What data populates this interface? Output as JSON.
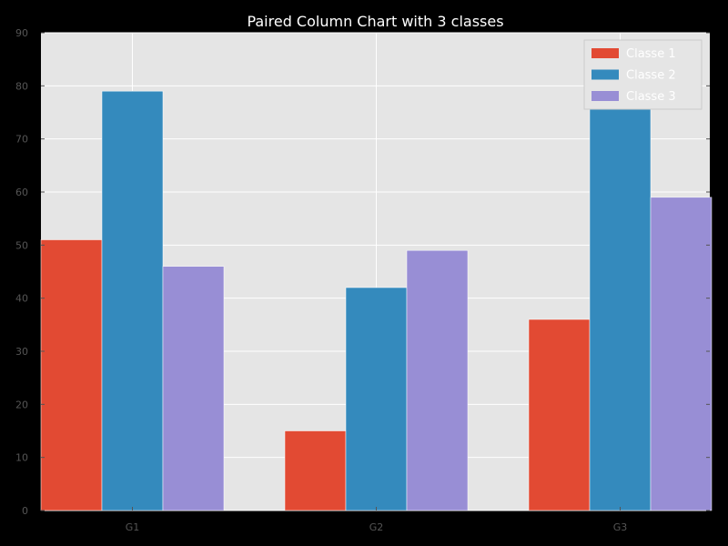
{
  "chart_data": {
    "type": "bar",
    "title": "Paired Column Chart with 3 classes",
    "xlabel": "",
    "ylabel": "",
    "categories": [
      "G1",
      "G2",
      "G3"
    ],
    "series": [
      {
        "name": "Classe 1",
        "values": [
          51,
          15,
          36
        ],
        "color": "#E24A33"
      },
      {
        "name": "Classe 2",
        "values": [
          79,
          42,
          76
        ],
        "color": "#348ABD"
      },
      {
        "name": "Classe 3",
        "values": [
          46,
          49,
          59
        ],
        "color": "#988ED5"
      }
    ],
    "ylim": [
      0,
      90
    ],
    "yticks": [
      0,
      10,
      20,
      30,
      40,
      50,
      60,
      70,
      80,
      90
    ],
    "grid": true,
    "legend_position": "top-right",
    "background_color": "#E5E5E5",
    "figure_color": "#000000",
    "grid_color": "#FFFFFF"
  }
}
